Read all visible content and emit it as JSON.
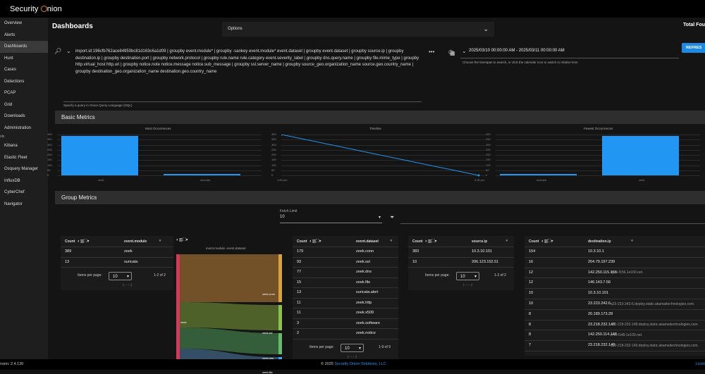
{
  "app": {
    "brand_left": "Security",
    "brand_right": "nion"
  },
  "sidebar": {
    "items": [
      "Overview",
      "Alerts",
      "Dashboards",
      "Hunt",
      "Cases",
      "Detections",
      "PCAP",
      "Grid",
      "Downloads",
      "Administration"
    ],
    "tools_label": "ols",
    "tools": [
      "Kibana",
      "Elastic Fleet",
      "Osquery Manager",
      "InfluxDB",
      "CyberChef",
      "Navigator"
    ]
  },
  "header": {
    "title": "Dashboards",
    "options_label": "Options",
    "total_label": "Total Fou"
  },
  "query": {
    "text": "import.id:196cfb762ace84950bc81d163c6a1d09 | groupby event.module* | groupby -sankey event.module* event.dataset | groupby event.dataset | groupby source.ip | groupby destination.ip | groupby destination.port | groupby network.protocol | groupby rule.name rule.category event.severity_label | groupby dns.query.name | groupby file.mime_type | groupby http.virtual_host http.uri | groupby notice.note notice.message notice.sub_message | groupby ssl.server_name | groupby source_geo.organization_name source.geo.country_name | groupby destination_geo.organization_name destination.geo.country_name",
    "hint": "Specify a query in Onion Query Language (OQL)",
    "chip": "import.id:196cfb762ace84950bc81d163c6a1d09"
  },
  "daterange": {
    "value": "2025/03/10 00:00:00 AM - 2025/03/11 00:00:00 AM",
    "hint": "Choose the timespan to search, or click the calendar icon to switch to relative time"
  },
  "refresh_label": "REFRES",
  "basic_metrics": {
    "title": "Basic Metrics",
    "most_title": "Most Occurrences",
    "timeline_title": "Timeline",
    "fewest_title": "Fewest Occurrences",
    "y_ticks": [
      "400",
      "350",
      "300",
      "250",
      "200",
      "150",
      "100",
      "50",
      "0"
    ],
    "most_labels": [
      "zeek",
      "suricata"
    ],
    "timeline_labels": [
      "1:00 pm",
      "2:00 pm"
    ],
    "fewest_labels": [
      "suricata",
      "zeek"
    ]
  },
  "chart_data": [
    {
      "type": "bar",
      "title": "Most Occurrences",
      "categories": [
        "zeek",
        "suricata"
      ],
      "values": [
        389,
        13
      ],
      "ylim": [
        0,
        400
      ]
    },
    {
      "type": "line",
      "title": "Timeline",
      "x": [
        "1:00 pm",
        "2:00 pm"
      ],
      "values": [
        400,
        0
      ],
      "ylim": [
        0,
        400
      ]
    },
    {
      "type": "bar",
      "title": "Fewest Occurrences",
      "categories": [
        "suricata",
        "zeek"
      ],
      "values": [
        13,
        389
      ],
      "ylim": [
        0,
        400
      ]
    }
  ],
  "group_metrics": {
    "title": "Group Metrics",
    "fetch_label": "Fetch Limit",
    "fetch_value": "10",
    "count_label": "Count",
    "items_per_page": "Items per page:",
    "module_table": {
      "col": "event.module",
      "rows": [
        [
          "389",
          "zeek"
        ],
        [
          "13",
          "suricata"
        ]
      ],
      "ipp": "10",
      "range": "1-2 of 2"
    },
    "sankey": {
      "title": "event.module, event.dataset",
      "left": "zeek",
      "labels": [
        "zeek.conn",
        "zeek.ssl",
        "zeek.dns",
        "zeek.file"
      ]
    },
    "dataset_table": {
      "col": "event.dataset",
      "rows": [
        [
          "179",
          "zeek.conn"
        ],
        [
          "93",
          "zeek.ssl"
        ],
        [
          "77",
          "zeek.dns"
        ],
        [
          "15",
          "zeek.file"
        ],
        [
          "13",
          "suricata.alert"
        ],
        [
          "11",
          "zeek.http"
        ],
        [
          "11",
          "zeek.x509"
        ],
        [
          "3",
          "zeek.software"
        ],
        [
          "2",
          "zeek.notice"
        ]
      ],
      "ipp": "10",
      "range": "1-9 of 9"
    },
    "source_table": {
      "col": "source.ip",
      "rows": [
        [
          "383",
          "10.3.10.101"
        ],
        [
          "10",
          "206.123.152.51"
        ]
      ],
      "ipp": "10",
      "range": "1-2 of 2"
    },
    "dest_table": {
      "col": "destination.ip",
      "rows": [
        [
          "154",
          "10.3.10.1",
          ""
        ],
        [
          "16",
          "204.79.197.239",
          ""
        ],
        [
          "12",
          "142.250.115.156",
          "rq-in-f156.1e100.net."
        ],
        [
          "12",
          "146.143.7.56",
          ""
        ],
        [
          "10",
          "10.3.10.101",
          ""
        ],
        [
          "10",
          "23.223.242.6",
          "a23-223-242-6.deploy.static.akamaitechnologies.com."
        ],
        [
          "8",
          "20.189.173.28",
          ""
        ],
        [
          "8",
          "23.218.232.148",
          "a23-218-232-148.deploy.static.akamaitechnologies.com."
        ],
        [
          "8",
          "142.250.114.148",
          "rr-in-f148.1e100.net."
        ],
        [
          "7",
          "23.218.232.140",
          "a23-218-232-140.deploy.static.akamaitechnologies.com."
        ]
      ]
    }
  },
  "footer": {
    "version": "rsion: 2.4.130",
    "copyright": "© 2025 ",
    "company": "Security Onion Solutions, LLC",
    "license": "Licen"
  }
}
